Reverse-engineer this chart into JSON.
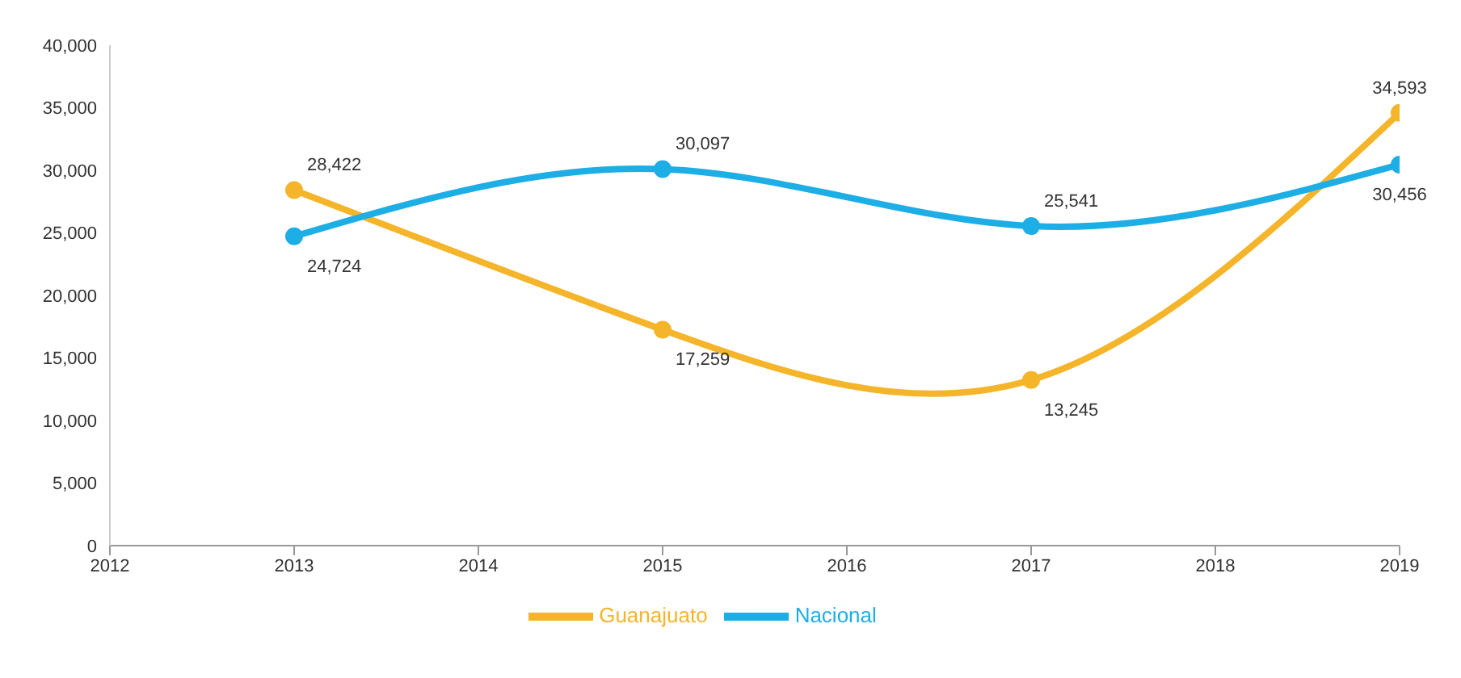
{
  "chart_data": {
    "type": "line",
    "x": [
      2013,
      2015,
      2017,
      2019
    ],
    "xlim": [
      2012,
      2019
    ],
    "xticks": [
      2012,
      2013,
      2014,
      2015,
      2016,
      2017,
      2018,
      2019
    ],
    "ylim": [
      0,
      40000
    ],
    "yticks": [
      0,
      {
        "value": 5000,
        "label": "5,000"
      },
      {
        "value": 10000,
        "label": "10,000"
      },
      {
        "value": 15000,
        "label": "15,000"
      },
      {
        "value": 20000,
        "label": "20,000"
      },
      {
        "value": 25000,
        "label": "25,000"
      },
      {
        "value": 30000,
        "label": "30,000"
      },
      {
        "value": 35000,
        "label": "35,000"
      },
      {
        "value": 40000,
        "label": "40,000"
      }
    ],
    "series": [
      {
        "name": "Guanajuato",
        "color": "#f5b52a",
        "values": [
          28422,
          17259,
          13245,
          34593
        ],
        "value_labels": [
          "28,422",
          "17,259",
          "13,245",
          "34,593"
        ]
      },
      {
        "name": "Nacional",
        "color": "#1eaee6",
        "values": [
          24724,
          30097,
          25541,
          30456
        ],
        "value_labels": [
          "24,724",
          "30,097",
          "25,541",
          "30,456"
        ]
      }
    ],
    "legend": "bottom",
    "grid": false,
    "marker": "circle",
    "line_style": "solid"
  }
}
